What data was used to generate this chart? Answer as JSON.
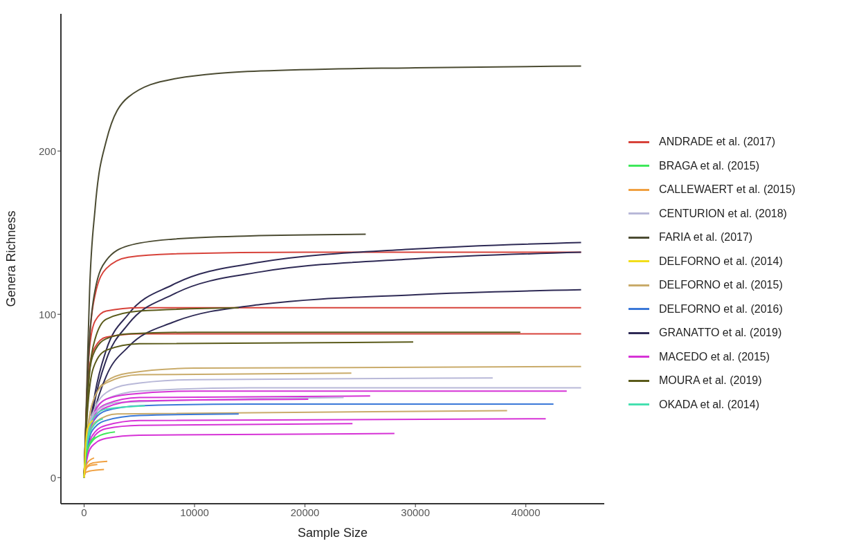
{
  "chart_data": {
    "type": "line",
    "xlabel": "Sample Size",
    "ylabel": "Genera Richness",
    "xlim": [
      -2100,
      47100
    ],
    "ylim": [
      -16,
      284
    ],
    "xticks": [
      0,
      10000,
      20000,
      30000,
      40000
    ],
    "yticks": [
      0,
      100,
      200
    ],
    "legend": "right",
    "series": [
      {
        "name": "ANDRADE et al. (2017)",
        "color": "#d7423a",
        "x": [
          0,
          250,
          500,
          1000,
          2000,
          4000,
          8000,
          20000,
          45000
        ],
        "values": [
          0,
          50,
          85,
          112,
          128,
          135,
          137,
          138,
          138
        ]
      },
      {
        "name": "BRAGA et al. (2015)",
        "color": "#3ee85a",
        "x": [
          0,
          100,
          300,
          700,
          1500,
          2800
        ],
        "values": [
          0,
          10,
          17,
          22,
          26,
          28
        ]
      },
      {
        "name": "CALLEWAERT et al. (2015)",
        "color": "#f0a040",
        "x": [
          0,
          100,
          300,
          600,
          900
        ],
        "values": [
          0,
          5,
          9,
          11,
          12
        ]
      },
      {
        "name": "CENTURION et al. (2018)",
        "color": "#b8b8d8",
        "x": [
          0,
          250,
          500,
          1000,
          2000,
          4000,
          10000,
          37000
        ],
        "values": [
          0,
          22,
          33,
          43,
          52,
          57,
          60,
          61
        ]
      },
      {
        "name": "FARIA et al. (2017)",
        "color": "#4b4b32",
        "x": [
          0,
          250,
          500,
          1000,
          2000,
          4000,
          8000,
          16000,
          30000,
          45000
        ],
        "values": [
          0,
          57,
          115,
          165,
          206,
          233,
          244,
          249,
          251,
          252
        ]
      },
      {
        "name": "DELFORNO et al. (2014)",
        "color": "#f2dd1a",
        "x": [
          0,
          100,
          300,
          800
        ],
        "values": [
          0,
          15,
          30,
          35
        ]
      },
      {
        "name": "DELFORNO et al. (2015)",
        "color": "#c9ab6a",
        "x": [
          0,
          250,
          500,
          1000,
          2000,
          4000,
          10000,
          45000
        ],
        "values": [
          0,
          25,
          38,
          50,
          59,
          64,
          67,
          68
        ]
      },
      {
        "name": "DELFORNO et al. (2016)",
        "color": "#3a78d8",
        "x": [
          0,
          250,
          500,
          1000,
          2000,
          5000,
          15000,
          42500
        ],
        "values": [
          0,
          20,
          29,
          36,
          41,
          44,
          45,
          45
        ]
      },
      {
        "name": "GRANATTO et al. (2019)",
        "color": "#2e2a55",
        "x": [
          0,
          500,
          1000,
          2000,
          4000,
          8000,
          16000,
          30000,
          45000
        ],
        "values": [
          0,
          30,
          52,
          78,
          100,
          118,
          132,
          140,
          144
        ]
      },
      {
        "name": "MACEDO et al. (2015)",
        "color": "#d632d6",
        "x": [
          0,
          250,
          500,
          1000,
          2000,
          4000,
          10000,
          43700
        ],
        "values": [
          0,
          22,
          32,
          41,
          48,
          51,
          53,
          53
        ]
      },
      {
        "name": "MOURA et al. (2019)",
        "color": "#5a5a1a",
        "x": [
          0,
          250,
          500,
          1000,
          2000,
          4000,
          10000,
          39500
        ],
        "values": [
          0,
          45,
          65,
          78,
          85,
          88,
          89,
          89
        ]
      },
      {
        "name": "OKADA et al. (2014)",
        "color": "#45e0b0",
        "x": [
          0,
          250,
          500,
          1000,
          2000,
          5500
        ],
        "values": [
          0,
          20,
          30,
          38,
          42,
          44
        ]
      },
      {
        "color": "#d7423a",
        "x": [
          0,
          250,
          500,
          1000,
          2000,
          5000,
          45000
        ],
        "values": [
          0,
          50,
          80,
          96,
          102,
          104,
          104
        ]
      },
      {
        "color": "#d7423a",
        "x": [
          0,
          250,
          500,
          1000,
          2000,
          5000,
          45000
        ],
        "values": [
          0,
          45,
          68,
          80,
          86,
          88,
          88
        ]
      },
      {
        "color": "#4b4b32",
        "x": [
          0,
          250,
          500,
          1000,
          2000,
          4000,
          8000,
          15000,
          25500
        ],
        "values": [
          0,
          50,
          85,
          115,
          133,
          142,
          146,
          148,
          149
        ]
      },
      {
        "color": "#5a5a1a",
        "x": [
          0,
          250,
          500,
          1000,
          2000,
          5000,
          14000
        ],
        "values": [
          0,
          40,
          65,
          85,
          97,
          102,
          104
        ]
      },
      {
        "color": "#5a5a1a",
        "x": [
          0,
          250,
          500,
          1000,
          2000,
          5000,
          29800
        ],
        "values": [
          0,
          35,
          55,
          70,
          78,
          82,
          83
        ]
      },
      {
        "color": "#2e2a55",
        "x": [
          0,
          500,
          1000,
          2000,
          4000,
          8000,
          16000,
          30000,
          45000
        ],
        "values": [
          0,
          28,
          48,
          72,
          94,
          112,
          126,
          134,
          138
        ]
      },
      {
        "color": "#2e2a55",
        "x": [
          0,
          500,
          1000,
          2000,
          4000,
          8000,
          16000,
          30000,
          45000
        ],
        "values": [
          0,
          25,
          42,
          62,
          80,
          95,
          106,
          112,
          115
        ]
      },
      {
        "color": "#c9ab6a",
        "x": [
          0,
          250,
          500,
          1000,
          2000,
          5000,
          24200
        ],
        "values": [
          0,
          25,
          38,
          50,
          58,
          63,
          64
        ]
      },
      {
        "color": "#c9ab6a",
        "x": [
          0,
          250,
          500,
          1000,
          3000,
          38300
        ],
        "values": [
          0,
          18,
          27,
          34,
          39,
          41
        ]
      },
      {
        "color": "#b8b8d8",
        "x": [
          0,
          250,
          500,
          1000,
          2000,
          5000,
          15000,
          45000
        ],
        "values": [
          0,
          20,
          30,
          40,
          48,
          53,
          55,
          55
        ]
      },
      {
        "color": "#b8b8d8",
        "x": [
          0,
          250,
          500,
          1000,
          3000,
          23500
        ],
        "values": [
          0,
          20,
          30,
          40,
          46,
          49
        ]
      },
      {
        "color": "#d632d6",
        "x": [
          0,
          250,
          500,
          1000,
          2000,
          5000,
          25900
        ],
        "values": [
          0,
          20,
          30,
          39,
          45,
          49,
          50
        ]
      },
      {
        "color": "#d632d6",
        "x": [
          0,
          250,
          500,
          1000,
          2000,
          5000,
          20300
        ],
        "values": [
          0,
          19,
          29,
          37,
          43,
          47,
          48
        ]
      },
      {
        "color": "#d632d6",
        "x": [
          0,
          250,
          500,
          1000,
          2000,
          5000,
          41800
        ],
        "values": [
          0,
          15,
          22,
          28,
          32,
          35,
          36
        ]
      },
      {
        "color": "#d632d6",
        "x": [
          0,
          250,
          500,
          1000,
          2000,
          5000,
          24300
        ],
        "values": [
          0,
          14,
          20,
          26,
          30,
          32,
          33
        ]
      },
      {
        "color": "#d632d6",
        "x": [
          0,
          250,
          500,
          1000,
          2000,
          5000,
          28100
        ],
        "values": [
          0,
          11,
          17,
          21,
          24,
          26,
          27
        ]
      },
      {
        "color": "#3a78d8",
        "x": [
          0,
          250,
          500,
          1000,
          2000,
          5000,
          14000
        ],
        "values": [
          0,
          17,
          25,
          31,
          35,
          38,
          39
        ]
      },
      {
        "color": "#45e0b0",
        "x": [
          0,
          200,
          500,
          1000,
          1700
        ],
        "values": [
          0,
          18,
          27,
          33,
          36
        ]
      },
      {
        "color": "#3ee85a",
        "x": [
          0,
          150,
          400,
          1000
        ],
        "values": [
          0,
          12,
          19,
          25
        ]
      },
      {
        "color": "#f0a040",
        "x": [
          0,
          100,
          300,
          800,
          2100
        ],
        "values": [
          0,
          4,
          7,
          9,
          10
        ]
      },
      {
        "color": "#f0a040",
        "x": [
          0,
          100,
          400,
          1200
        ],
        "values": [
          0,
          4,
          7,
          8
        ]
      },
      {
        "color": "#f0a040",
        "x": [
          0,
          100,
          500,
          1800
        ],
        "values": [
          0,
          3,
          4,
          5
        ]
      }
    ]
  }
}
